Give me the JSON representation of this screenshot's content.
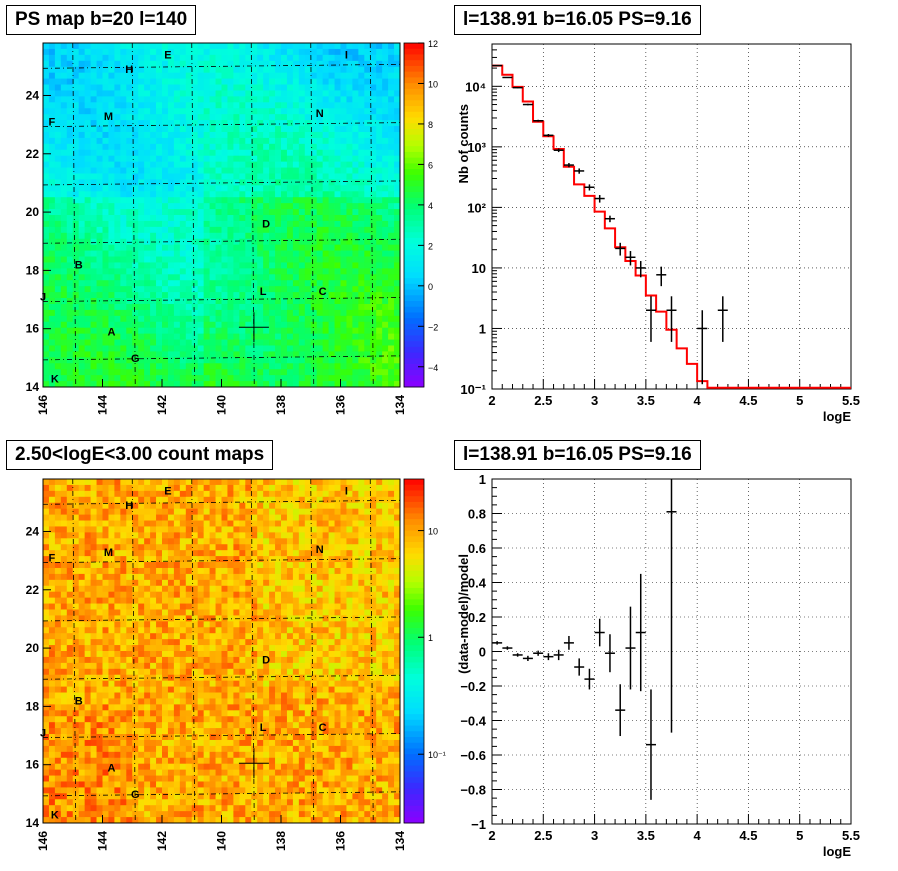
{
  "panels": {
    "ps_map_title": "PS map b=20 l=140",
    "spectrum_title": "l=138.91 b=16.05 PS=9.16",
    "count_map_title": "2.50<logE<3.00 count maps",
    "residual_title": "l=138.91 b=16.05 PS=9.16"
  },
  "chart_data": [
    {
      "type": "heatmap",
      "title": "PS map b=20 l=140",
      "x_ticks": [
        "146",
        "144",
        "142",
        "140",
        "138",
        "136",
        "134"
      ],
      "y_ticks": [
        "14",
        "16",
        "18",
        "20",
        "22",
        "24"
      ],
      "xlim": [
        146,
        134
      ],
      "ylim": [
        14,
        25.8
      ],
      "colorbar_ticks": [
        "12",
        "10",
        "8",
        "6",
        "4",
        "2",
        "0",
        "−2",
        "−4"
      ],
      "colorbar_range": [
        -5,
        12
      ],
      "marker": {
        "l": 138.91,
        "b": 16.05
      },
      "sources": [
        {
          "label": "A",
          "l": 143.7,
          "b": 15.9
        },
        {
          "label": "B",
          "l": 144.8,
          "b": 18.2
        },
        {
          "label": "C",
          "l": 136.6,
          "b": 17.3
        },
        {
          "label": "D",
          "l": 138.5,
          "b": 19.6
        },
        {
          "label": "E",
          "l": 141.8,
          "b": 25.4
        },
        {
          "label": "F",
          "l": 145.7,
          "b": 23.1
        },
        {
          "label": "G",
          "l": 142.9,
          "b": 15.0
        },
        {
          "label": "H",
          "l": 143.1,
          "b": 24.9
        },
        {
          "label": "I",
          "l": 135.8,
          "b": 25.4
        },
        {
          "label": "J",
          "l": 146.0,
          "b": 17.1
        },
        {
          "label": "K",
          "l": 145.6,
          "b": 14.3
        },
        {
          "label": "L",
          "l": 138.6,
          "b": 17.3
        },
        {
          "label": "M",
          "l": 143.8,
          "b": 23.3
        },
        {
          "label": "N",
          "l": 136.7,
          "b": 23.4
        }
      ]
    },
    {
      "type": "line",
      "title": "l=138.91 b=16.05 PS=9.16",
      "xlabel": "logE",
      "ylabel": "Nb of counts",
      "xlim": [
        2,
        5.5
      ],
      "ylim": [
        0.1,
        50000
      ],
      "ylog": true,
      "grid": true,
      "x_ticks": [
        "2",
        "2.5",
        "3",
        "3.5",
        "4",
        "4.5",
        "5",
        "5.5"
      ],
      "y_ticks": [
        "10⁻¹",
        "1",
        "10",
        "10²",
        "10³",
        "10⁴"
      ],
      "model_step": {
        "edges": [
          2,
          2.1,
          2.2,
          2.3,
          2.4,
          2.5,
          2.6,
          2.7,
          2.8,
          2.9,
          3.0,
          3.1,
          3.2,
          3.3,
          3.4,
          3.5,
          3.6,
          3.7,
          3.8,
          3.9,
          4.0,
          4.1,
          4.2,
          5.5
        ],
        "values": [
          22000,
          15500,
          9800,
          5600,
          2600,
          1500,
          920,
          470,
          240,
          155,
          85,
          45,
          22,
          13,
          7.5,
          3.5,
          1.9,
          0.95,
          0.47,
          0.26,
          0.135,
          0.105,
          0.105
        ]
      },
      "data_points": [
        {
          "x": 2.05,
          "y": 22000,
          "lo": 21700,
          "hi": 22300
        },
        {
          "x": 2.15,
          "y": 14000,
          "lo": 13800,
          "hi": 14200
        },
        {
          "x": 2.25,
          "y": 9500,
          "lo": 9300,
          "hi": 9700
        },
        {
          "x": 2.35,
          "y": 5000,
          "lo": 4850,
          "hi": 5150
        },
        {
          "x": 2.45,
          "y": 2700,
          "lo": 2600,
          "hi": 2800
        },
        {
          "x": 2.55,
          "y": 1550,
          "lo": 1470,
          "hi": 1630
        },
        {
          "x": 2.65,
          "y": 880,
          "lo": 820,
          "hi": 940
        },
        {
          "x": 2.75,
          "y": 500,
          "lo": 460,
          "hi": 540
        },
        {
          "x": 2.85,
          "y": 400,
          "lo": 360,
          "hi": 440
        },
        {
          "x": 2.95,
          "y": 215,
          "lo": 190,
          "hi": 240
        },
        {
          "x": 3.05,
          "y": 140,
          "lo": 120,
          "hi": 160
        },
        {
          "x": 3.15,
          "y": 65,
          "lo": 57,
          "hi": 73
        },
        {
          "x": 3.25,
          "y": 21,
          "lo": 16,
          "hi": 26
        },
        {
          "x": 3.35,
          "y": 15,
          "lo": 11,
          "hi": 19
        },
        {
          "x": 3.45,
          "y": 10,
          "lo": 7,
          "hi": 13
        },
        {
          "x": 3.55,
          "y": 2,
          "lo": 0.6,
          "hi": 3.4
        },
        {
          "x": 3.65,
          "y": 7.7,
          "lo": 5,
          "hi": 10.5
        },
        {
          "x": 3.75,
          "y": 2,
          "lo": 0.6,
          "hi": 3.4
        },
        {
          "x": 4.05,
          "y": 1,
          "lo": 0.12,
          "hi": 2.0
        },
        {
          "x": 4.25,
          "y": 2,
          "lo": 0.6,
          "hi": 3.4
        }
      ]
    },
    {
      "type": "heatmap",
      "title": "2.50<logE<3.00 count maps",
      "x_ticks": [
        "146",
        "144",
        "142",
        "140",
        "138",
        "136",
        "134"
      ],
      "y_ticks": [
        "14",
        "16",
        "18",
        "20",
        "22",
        "24"
      ],
      "xlim": [
        146,
        134
      ],
      "ylim": [
        14,
        25.8
      ],
      "colorbar_ticks": [
        "10",
        "1",
        "10⁻¹"
      ],
      "colorbar_log": true,
      "marker": {
        "l": 138.91,
        "b": 16.05
      },
      "sources": [
        {
          "label": "A",
          "l": 143.7,
          "b": 15.9
        },
        {
          "label": "B",
          "l": 144.8,
          "b": 18.2
        },
        {
          "label": "C",
          "l": 136.6,
          "b": 17.3
        },
        {
          "label": "D",
          "l": 138.5,
          "b": 19.6
        },
        {
          "label": "E",
          "l": 141.8,
          "b": 25.4
        },
        {
          "label": "F",
          "l": 145.7,
          "b": 23.1
        },
        {
          "label": "G",
          "l": 142.9,
          "b": 15.0
        },
        {
          "label": "H",
          "l": 143.1,
          "b": 24.9
        },
        {
          "label": "I",
          "l": 135.8,
          "b": 25.4
        },
        {
          "label": "J",
          "l": 146.0,
          "b": 17.1
        },
        {
          "label": "K",
          "l": 145.6,
          "b": 14.3
        },
        {
          "label": "L",
          "l": 138.6,
          "b": 17.3
        },
        {
          "label": "M",
          "l": 143.8,
          "b": 23.3
        },
        {
          "label": "N",
          "l": 136.7,
          "b": 23.4
        }
      ]
    },
    {
      "type": "scatter",
      "title": "l=138.91 b=16.05 PS=9.16",
      "xlabel": "logE",
      "ylabel": "(data-model)/model",
      "xlim": [
        2,
        5.5
      ],
      "ylim": [
        -1,
        1
      ],
      "grid": true,
      "x_ticks": [
        "2",
        "2.5",
        "3",
        "3.5",
        "4",
        "4.5",
        "5",
        "5.5"
      ],
      "y_ticks": [
        "−1",
        "−0.8",
        "−0.6",
        "−0.4",
        "−0.2",
        "0",
        "0.2",
        "0.4",
        "0.6",
        "0.8",
        "1"
      ],
      "data_points": [
        {
          "x": 2.05,
          "y": 0.05,
          "lo": 0.04,
          "hi": 0.06
        },
        {
          "x": 2.15,
          "y": 0.02,
          "lo": 0.01,
          "hi": 0.03
        },
        {
          "x": 2.25,
          "y": -0.02,
          "lo": -0.03,
          "hi": -0.01
        },
        {
          "x": 2.35,
          "y": -0.04,
          "lo": -0.055,
          "hi": -0.025
        },
        {
          "x": 2.45,
          "y": -0.01,
          "lo": -0.025,
          "hi": 0.005
        },
        {
          "x": 2.55,
          "y": -0.03,
          "lo": -0.05,
          "hi": -0.01
        },
        {
          "x": 2.65,
          "y": -0.02,
          "lo": -0.05,
          "hi": 0.01
        },
        {
          "x": 2.75,
          "y": 0.05,
          "lo": 0.01,
          "hi": 0.09
        },
        {
          "x": 2.85,
          "y": -0.09,
          "lo": -0.14,
          "hi": -0.04
        },
        {
          "x": 2.95,
          "y": -0.16,
          "lo": -0.22,
          "hi": -0.1
        },
        {
          "x": 3.05,
          "y": 0.11,
          "lo": 0.03,
          "hi": 0.19
        },
        {
          "x": 3.15,
          "y": -0.01,
          "lo": -0.12,
          "hi": 0.1
        },
        {
          "x": 3.25,
          "y": -0.34,
          "lo": -0.49,
          "hi": -0.19
        },
        {
          "x": 3.35,
          "y": 0.02,
          "lo": -0.22,
          "hi": 0.26
        },
        {
          "x": 3.45,
          "y": 0.11,
          "lo": -0.23,
          "hi": 0.45
        },
        {
          "x": 3.55,
          "y": -0.54,
          "lo": -0.86,
          "hi": -0.22
        },
        {
          "x": 3.75,
          "y": 0.81,
          "lo": -0.47,
          "hi": 1.0
        }
      ]
    }
  ]
}
